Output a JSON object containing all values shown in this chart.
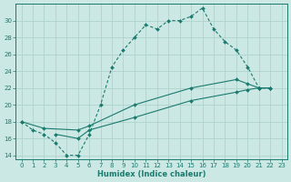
{
  "line1_x": [
    0,
    1,
    2,
    3,
    4,
    5,
    6,
    7,
    8,
    9,
    10,
    11,
    12,
    13,
    14,
    15,
    16,
    17,
    18,
    19,
    20,
    21,
    22
  ],
  "line1_y": [
    18,
    17,
    16.5,
    15.5,
    14,
    14,
    16.5,
    20,
    24.5,
    26.5,
    28,
    29.5,
    29,
    30,
    30,
    30.5,
    31.5,
    29,
    27.5,
    26.5,
    24.5,
    22,
    22
  ],
  "line2_x": [
    0,
    2,
    5,
    6,
    10,
    15,
    19,
    20,
    21,
    22
  ],
  "line2_y": [
    18,
    17.2,
    17,
    17.5,
    20,
    22,
    23,
    22.5,
    22,
    22
  ],
  "line3_x": [
    3,
    5,
    6,
    10,
    15,
    19,
    20,
    21,
    22
  ],
  "line3_y": [
    16.5,
    16,
    17,
    18.5,
    20.5,
    21.5,
    21.8,
    22,
    22
  ],
  "line_color": "#1a7a6e",
  "bg_color": "#cce8e4",
  "grid_color": "#aacfca",
  "xlabel": "Humidex (Indice chaleur)",
  "xlim": [
    -0.5,
    23.5
  ],
  "ylim": [
    13.5,
    32
  ],
  "xticks": [
    0,
    1,
    2,
    3,
    4,
    5,
    6,
    7,
    8,
    9,
    10,
    11,
    12,
    13,
    14,
    15,
    16,
    17,
    18,
    19,
    20,
    21,
    22,
    23
  ],
  "yticks": [
    14,
    16,
    18,
    20,
    22,
    24,
    26,
    28,
    30
  ],
  "figsize": [
    3.2,
    2.0
  ],
  "dpi": 100
}
